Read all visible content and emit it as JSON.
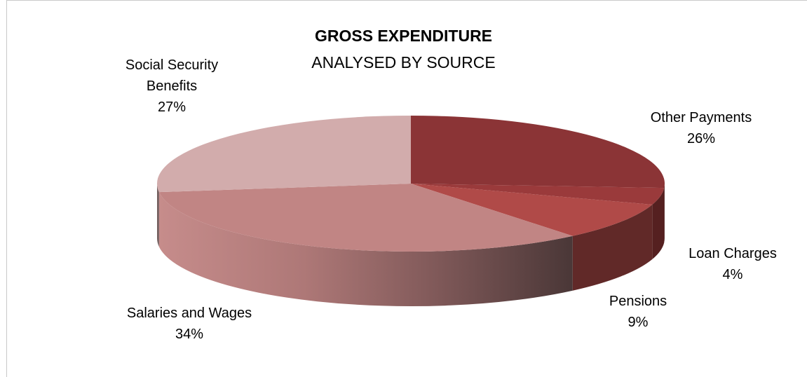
{
  "chart_data": {
    "type": "pie",
    "title": "GROSS EXPENDITURE",
    "subtitle": "ANALYSED BY SOURCE",
    "slices": [
      {
        "name": "Other Payments",
        "value": 26,
        "label": "26%",
        "color": "#8B3436"
      },
      {
        "name": "Loan Charges",
        "value": 4,
        "label": "4%",
        "color": "#9A3A3B"
      },
      {
        "name": "Pensions",
        "value": 9,
        "label": "9%",
        "color": "#B04A48"
      },
      {
        "name": "Salaries and Wages",
        "value": 34,
        "label": "34%",
        "color": "#C18584"
      },
      {
        "name": "Social Security Benefits",
        "value": 27,
        "label": "27%",
        "color": "#D2ACAC"
      }
    ]
  }
}
